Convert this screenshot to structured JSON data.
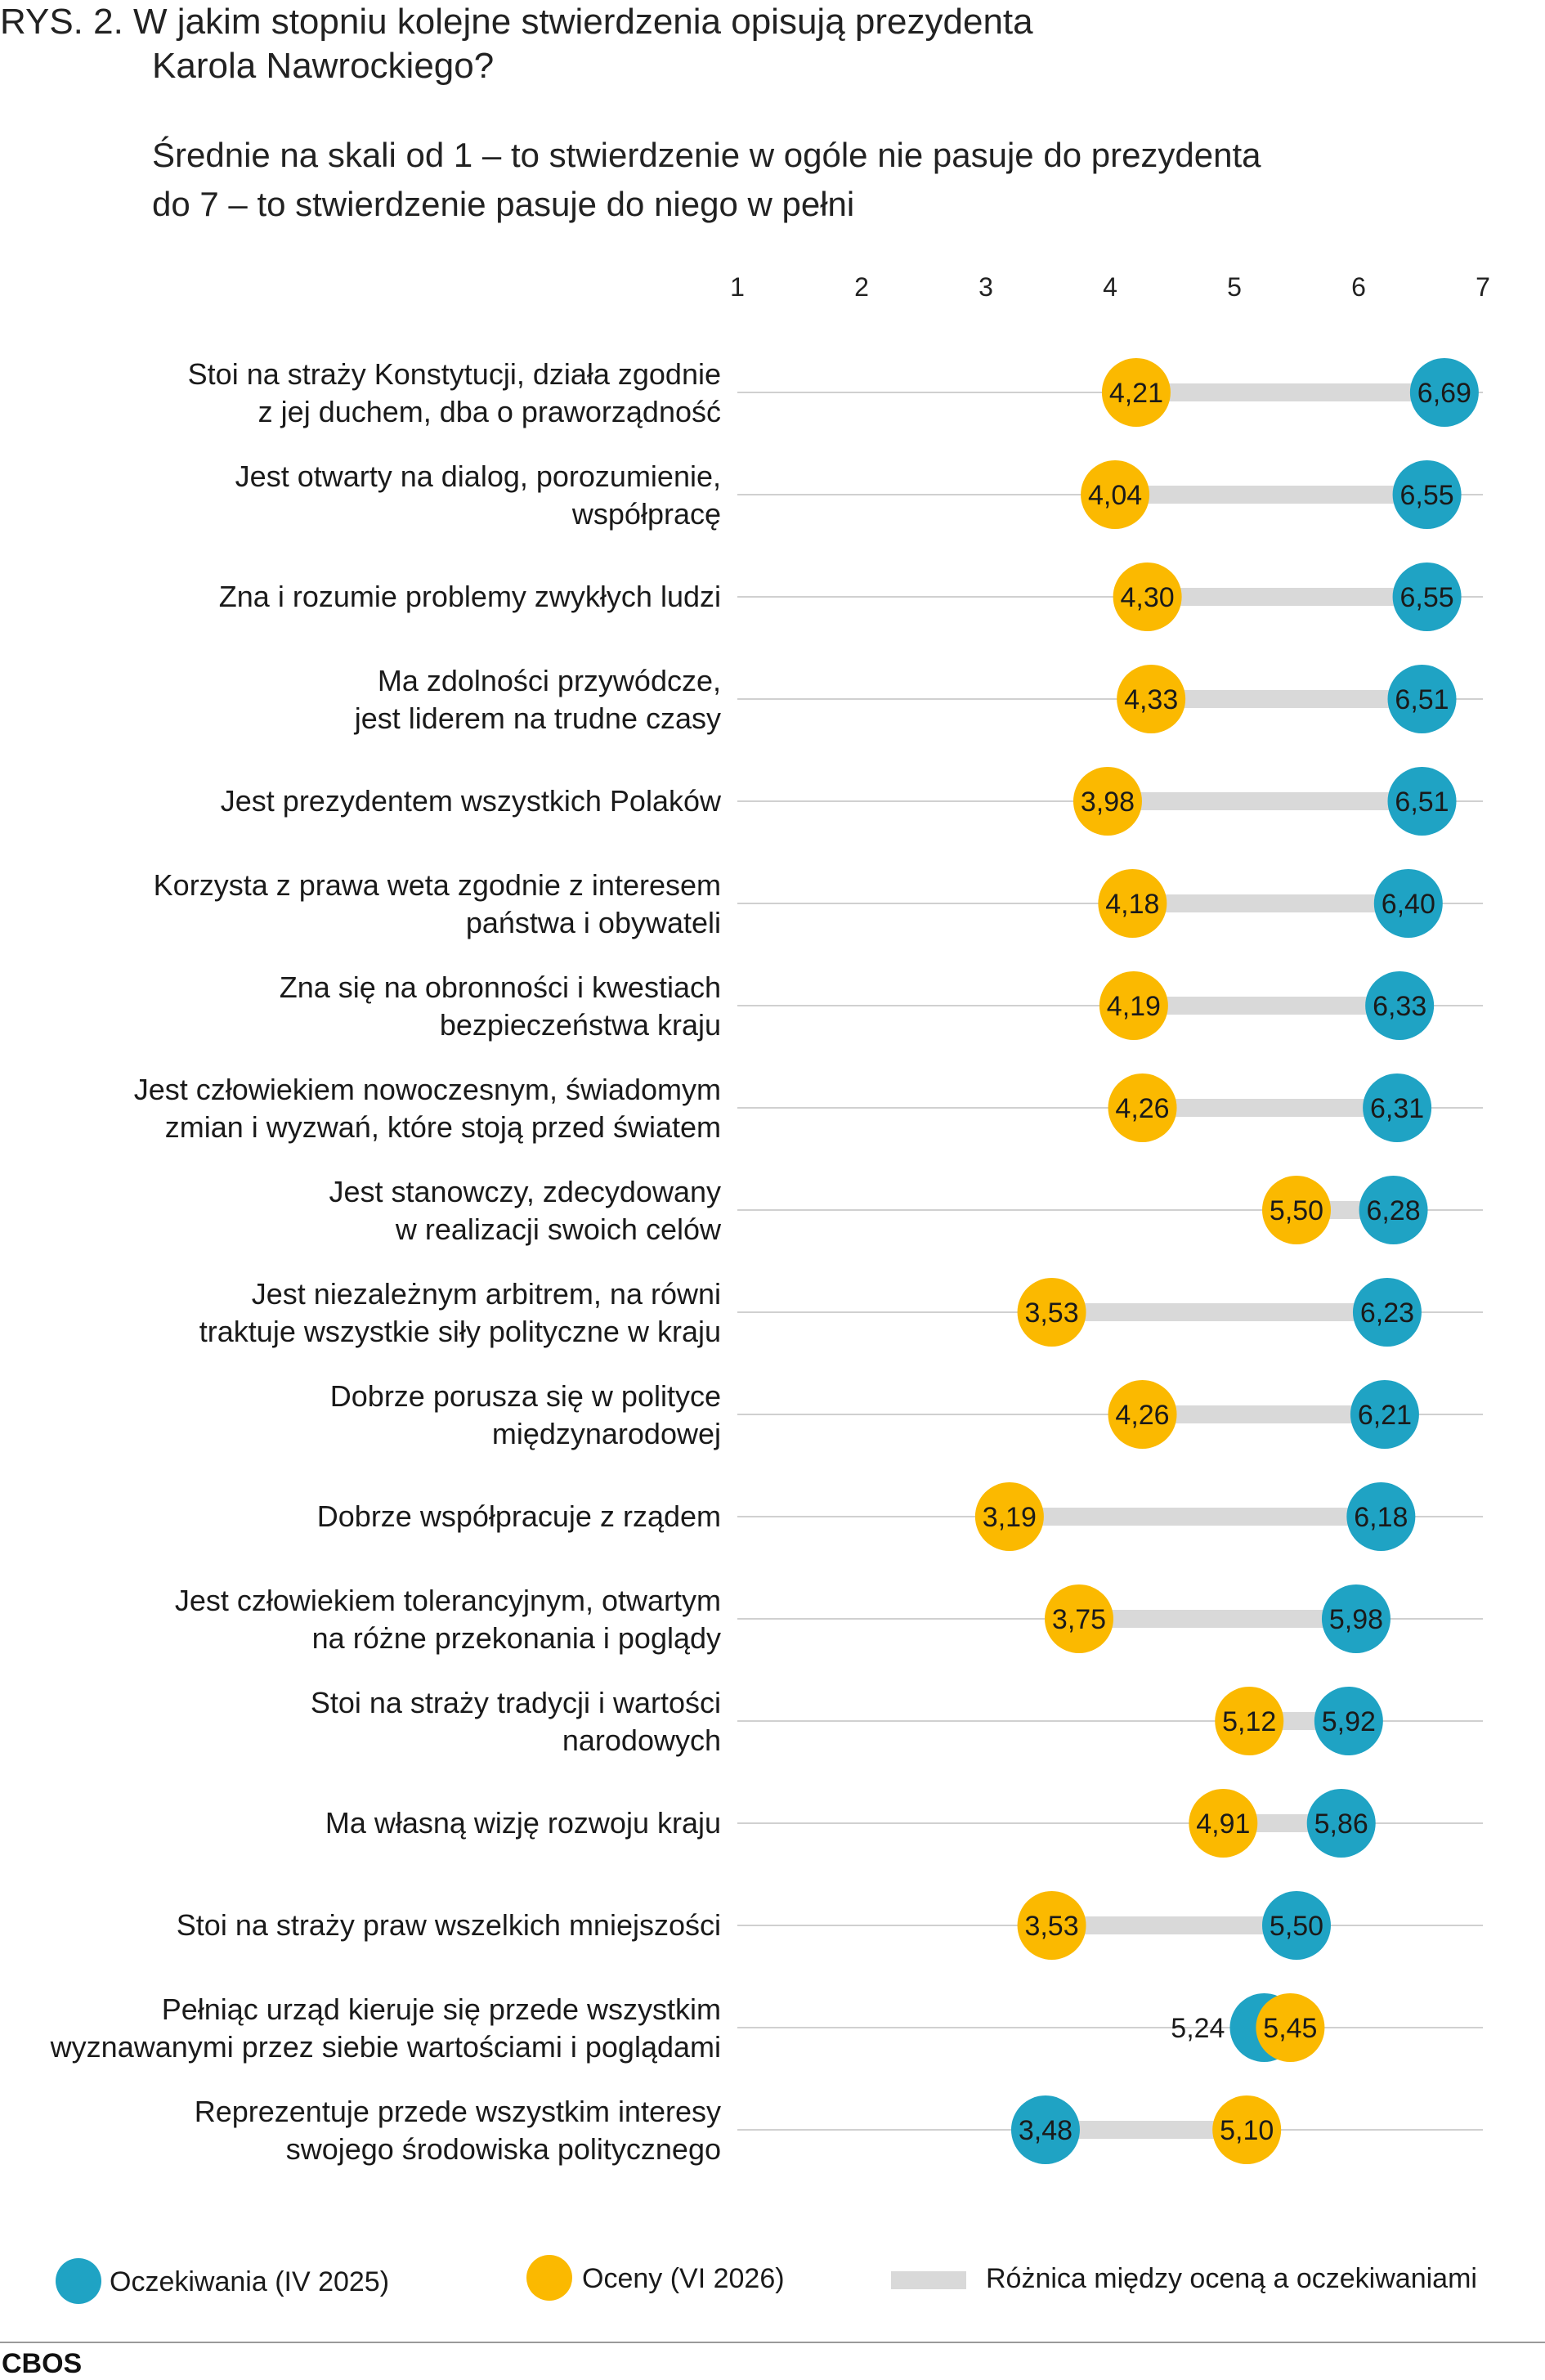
{
  "title": {
    "line1": "RYS. 2. W jakim stopniu kolejne stwierdzenia opisują prezydenta",
    "line2": "Karola Nawrockiego?"
  },
  "subtitle": {
    "line1": "Średnie na skali od 1 – to stwierdzenie w ogóle nie pasuje do prezydenta",
    "line2": "do 7 – to stwierdzenie pasuje do niego w pełni"
  },
  "colors": {
    "expectations": "#1fa3c4",
    "ratings": "#fbb900",
    "difference": "#d9d9d9",
    "gridline": "#d0d0d0"
  },
  "chart_data": {
    "type": "dumbbell",
    "axis": {
      "min": 1,
      "max": 7,
      "ticks": [
        "1",
        "2",
        "3",
        "4",
        "5",
        "6",
        "7"
      ]
    },
    "legend": {
      "expectations": "Oczekiwania (IV 2025)",
      "ratings": "Oceny (VI 2026)",
      "difference": "Różnica między oceną a oczekiwaniami"
    },
    "rows": [
      {
        "label": [
          "Stoi na straży Konstytucji, działa zgodnie",
          "z jej duchem, dba o praworządność"
        ],
        "expectations": 6.69,
        "ratings": 4.21,
        "expectations_label": "6,69",
        "ratings_label": "4,21"
      },
      {
        "label": [
          "Jest otwarty na dialog, porozumienie,",
          "współpracę"
        ],
        "expectations": 6.55,
        "ratings": 4.04,
        "expectations_label": "6,55",
        "ratings_label": "4,04"
      },
      {
        "label": [
          "Zna i rozumie problemy zwykłych ludzi"
        ],
        "expectations": 6.55,
        "ratings": 4.3,
        "expectations_label": "6,55",
        "ratings_label": "4,30"
      },
      {
        "label": [
          "Ma zdolności przywódcze,",
          "jest liderem na trudne czasy"
        ],
        "expectations": 6.51,
        "ratings": 4.33,
        "expectations_label": "6,51",
        "ratings_label": "4,33"
      },
      {
        "label": [
          "Jest prezydentem wszystkich Polaków"
        ],
        "expectations": 6.51,
        "ratings": 3.98,
        "expectations_label": "6,51",
        "ratings_label": "3,98"
      },
      {
        "label": [
          "Korzysta z prawa weta zgodnie z interesem",
          "państwa i obywateli"
        ],
        "expectations": 6.4,
        "ratings": 4.18,
        "expectations_label": "6,40",
        "ratings_label": "4,18"
      },
      {
        "label": [
          "Zna się na obronności i kwestiach",
          "bezpieczeństwa kraju"
        ],
        "expectations": 6.33,
        "ratings": 4.19,
        "expectations_label": "6,33",
        "ratings_label": "4,19"
      },
      {
        "label": [
          "Jest człowiekiem nowoczesnym, świadomym",
          "zmian i wyzwań, które stoją przed światem"
        ],
        "expectations": 6.31,
        "ratings": 4.26,
        "expectations_label": "6,31",
        "ratings_label": "4,26"
      },
      {
        "label": [
          "Jest stanowczy, zdecydowany",
          "w realizacji swoich celów"
        ],
        "expectations": 6.28,
        "ratings": 5.5,
        "expectations_label": "6,28",
        "ratings_label": "5,50"
      },
      {
        "label": [
          "Jest niezależnym arbitrem, na równi",
          "traktuje wszystkie siły polityczne w kraju"
        ],
        "expectations": 6.23,
        "ratings": 3.53,
        "expectations_label": "6,23",
        "ratings_label": "3,53"
      },
      {
        "label": [
          "Dobrze porusza się w polityce",
          "międzynarodowej"
        ],
        "expectations": 6.21,
        "ratings": 4.26,
        "expectations_label": "6,21",
        "ratings_label": "4,26"
      },
      {
        "label": [
          "Dobrze współpracuje z rządem"
        ],
        "expectations": 6.18,
        "ratings": 3.19,
        "expectations_label": "6,18",
        "ratings_label": "3,19"
      },
      {
        "label": [
          "Jest człowiekiem tolerancyjnym, otwartym",
          "na różne przekonania i poglądy"
        ],
        "expectations": 5.98,
        "ratings": 3.75,
        "expectations_label": "5,98",
        "ratings_label": "3,75"
      },
      {
        "label": [
          "Stoi na straży tradycji i wartości",
          "narodowych"
        ],
        "expectations": 5.92,
        "ratings": 5.12,
        "expectations_label": "5,92",
        "ratings_label": "5,12"
      },
      {
        "label": [
          "Ma własną wizję rozwoju kraju"
        ],
        "expectations": 5.86,
        "ratings": 4.91,
        "expectations_label": "5,86",
        "ratings_label": "4,91"
      },
      {
        "label": [
          "Stoi na straży praw wszelkich mniejszości"
        ],
        "expectations": 5.5,
        "ratings": 3.53,
        "expectations_label": "5,50",
        "ratings_label": "3,53"
      },
      {
        "label": [
          "Pełniąc urząd kieruje się przede wszystkim",
          "wyznawanymi przez siebie wartościami i poglądami"
        ],
        "expectations": 5.24,
        "ratings": 5.45,
        "expectations_label": "5,24",
        "ratings_label": "5,45",
        "expectations_label_outside": true
      },
      {
        "label": [
          "Reprezentuje przede wszystkim interesy",
          "swojego środowiska politycznego"
        ],
        "expectations": 3.48,
        "ratings": 5.1,
        "expectations_label": "3,48",
        "ratings_label": "5,10"
      }
    ]
  },
  "footer": {
    "source": "CBOS"
  }
}
